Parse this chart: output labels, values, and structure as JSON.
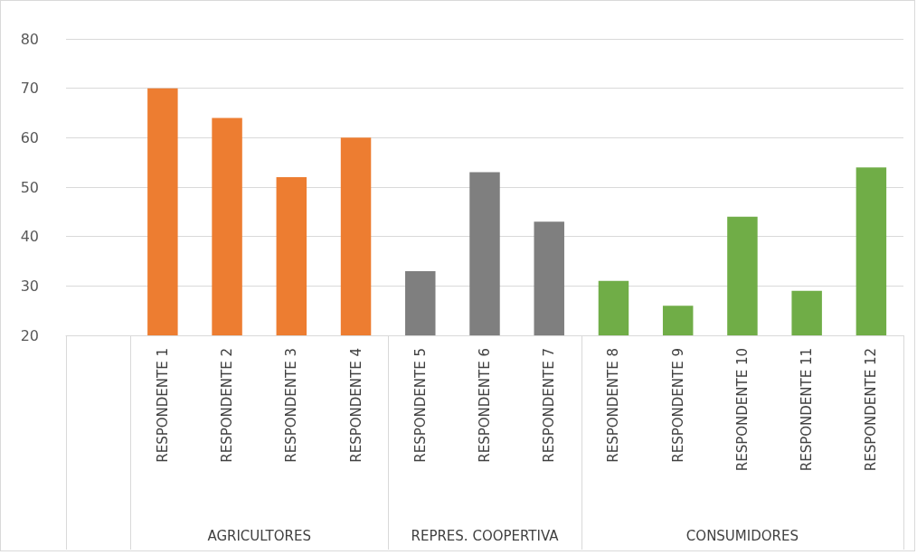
{
  "chart_data": {
    "type": "bar",
    "categories": [
      null,
      "RESPONDENTE 1",
      "RESPONDENTE 2",
      "RESPONDENTE 3",
      "RESPONDENTE 4",
      "RESPONDENTE 5",
      "RESPONDENTE 6",
      "RESPONDENTE 7",
      "RESPONDENTE 8",
      "RESPONDENTE 9",
      "RESPONDENTE 10",
      "RESPONDENTE 11",
      "RESPONDENTE 12"
    ],
    "values": [
      null,
      70,
      64,
      52,
      60,
      33,
      53,
      43,
      31,
      26,
      44,
      29,
      54
    ],
    "colors": [
      null,
      "#ed7d31",
      "#ed7d31",
      "#ed7d31",
      "#ed7d31",
      "#7f7f7f",
      "#7f7f7f",
      "#7f7f7f",
      "#70ad47",
      "#70ad47",
      "#70ad47",
      "#70ad47",
      "#70ad47"
    ],
    "annotations": [
      "AGRICULTORES",
      "REPRES. COOPERTIVA",
      "CONSUMIDORES"
    ],
    "ylim": [
      20,
      80
    ],
    "yticks": [
      20,
      30,
      40,
      50,
      60,
      70,
      80
    ],
    "grid": "y"
  }
}
